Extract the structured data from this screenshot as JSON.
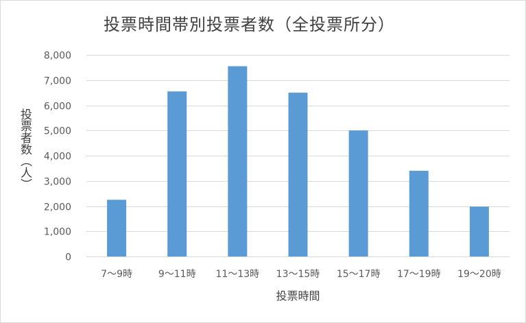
{
  "chart_data": {
    "type": "bar",
    "title": "投票時間帯別投票者数（全投票所分）",
    "xlabel": "投票時間",
    "ylabel": "投票者数（人）",
    "categories": [
      "7～9時",
      "9～11時",
      "11～13時",
      "13～15時",
      "15～17時",
      "17～19時",
      "19～20時"
    ],
    "values": [
      2250,
      6550,
      7550,
      6500,
      5000,
      3400,
      1980
    ],
    "ylim": [
      0,
      8000
    ],
    "yticks": [
      "0",
      "1,000",
      "2,000",
      "3,000",
      "4,000",
      "5,000",
      "6,000",
      "7,000",
      "8,000"
    ],
    "ytick_values": [
      0,
      1000,
      2000,
      3000,
      4000,
      5000,
      6000,
      7000,
      8000
    ],
    "grid": true,
    "legend": "none",
    "bar_color": "#5b9bd5",
    "grid_color": "#d9d9d9"
  }
}
